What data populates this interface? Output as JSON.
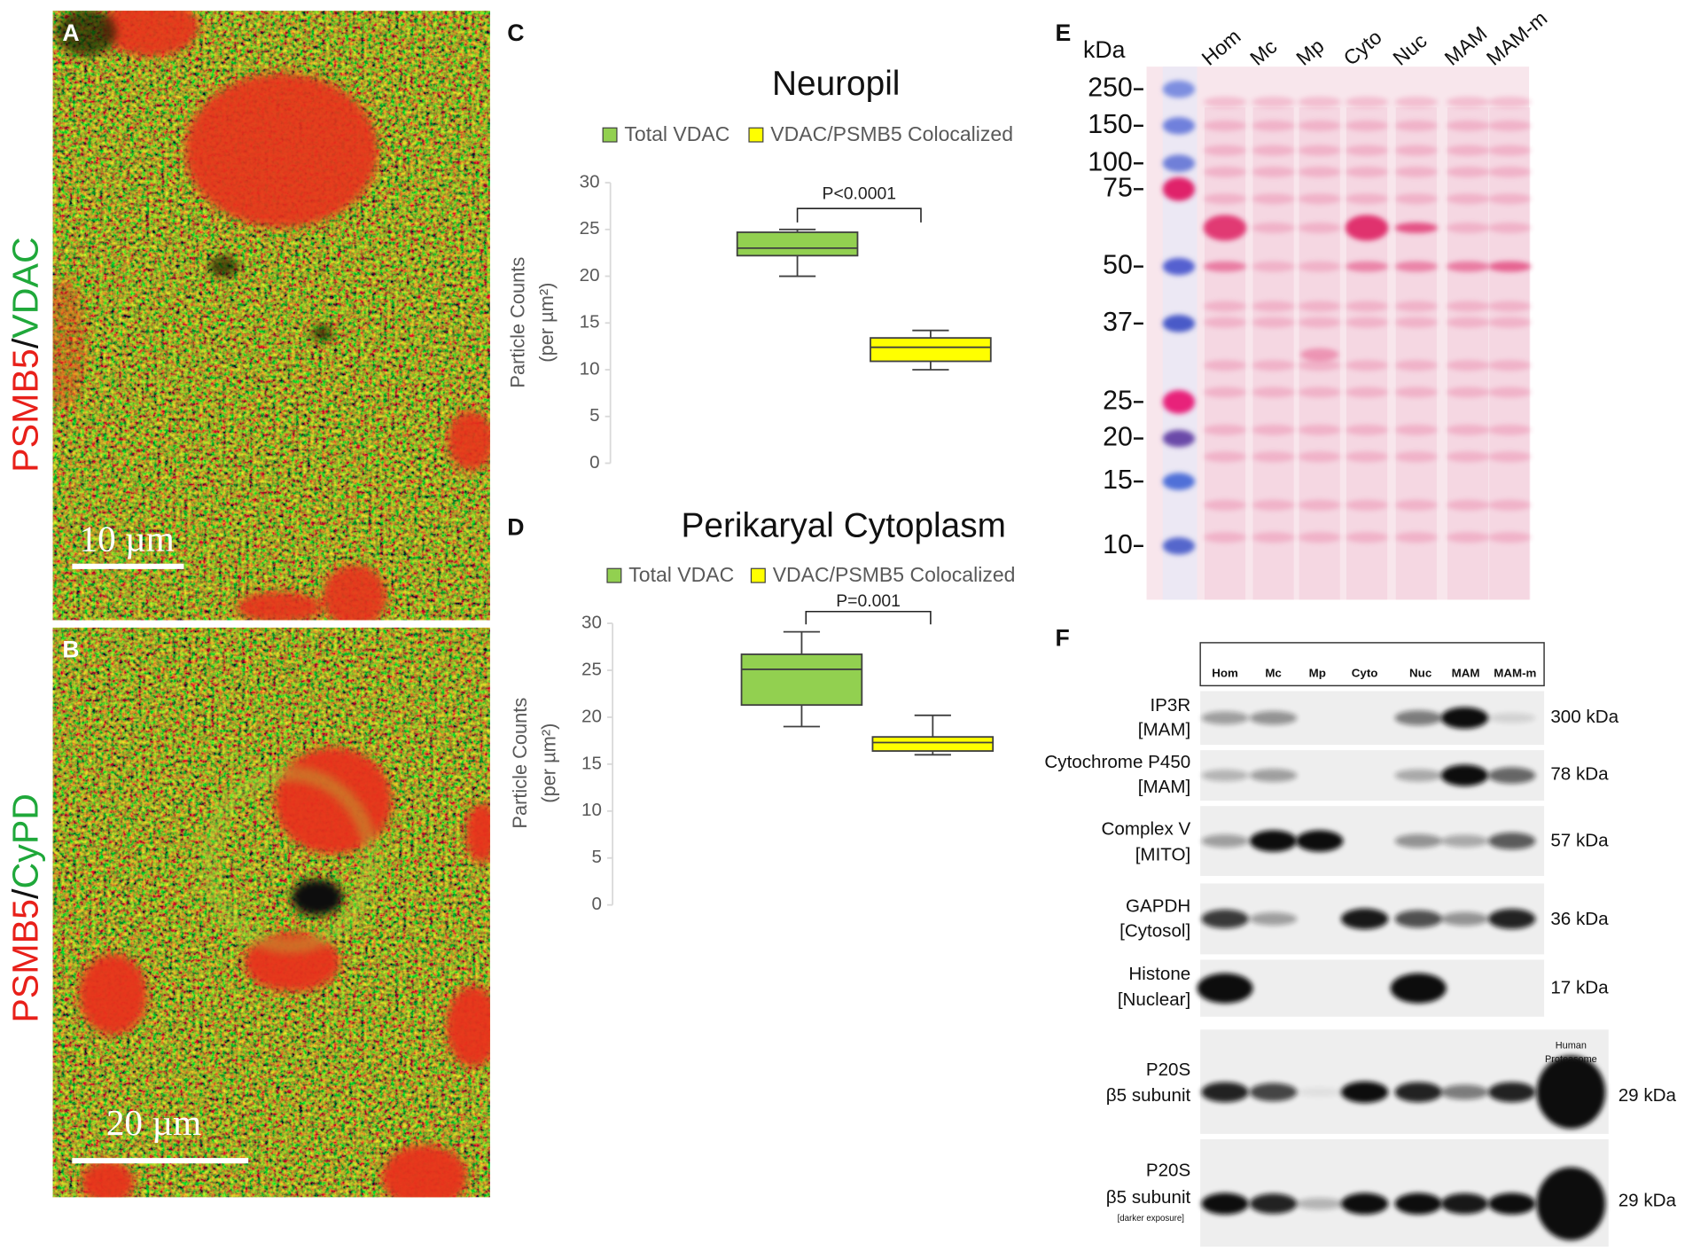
{
  "panels": {
    "A": {
      "letter": "A",
      "stain": [
        "PSMB5",
        "/",
        "VDAC"
      ],
      "scale_bar": "10 µm"
    },
    "B": {
      "letter": "B",
      "stain": [
        "PSMB5",
        "/",
        "CyPD"
      ],
      "scale_bar": "20 µm"
    },
    "C": {
      "letter": "C"
    },
    "D": {
      "letter": "D"
    },
    "E": {
      "letter": "E",
      "unit": "kDa",
      "markers": [
        "250",
        "150",
        "100",
        "75",
        "50",
        "37",
        "25",
        "20",
        "15",
        "10"
      ],
      "lanes": [
        "Hom",
        "Mc",
        "Mp",
        "Cyto",
        "Nuc",
        "MAM",
        "MAM-m"
      ]
    },
    "F": {
      "letter": "F",
      "lanes": [
        "Hom",
        "Mc",
        "Mp",
        "Cyto",
        "Nuc",
        "MAM",
        "MAM-m"
      ],
      "blots": [
        {
          "label": [
            "IP3R",
            "[MAM]"
          ],
          "size": "300 kDa"
        },
        {
          "label": [
            "Cytochrome P450",
            "[MAM]"
          ],
          "size": "78 kDa"
        },
        {
          "label": [
            "Complex V",
            "[MITO]"
          ],
          "size": "57 kDa"
        },
        {
          "label": [
            "GAPDH",
            "[Cytosol]"
          ],
          "size": "36 kDa"
        },
        {
          "label": [
            "Histone",
            "[Nuclear]"
          ],
          "size": "17 kDa"
        },
        {
          "label": [
            "P20S",
            "β5 subunit"
          ],
          "size": "29 kDa",
          "control": [
            "Human",
            "Proteasome"
          ]
        },
        {
          "label": [
            "P20S",
            "β5 subunit"
          ],
          "note": "[darker exposure]",
          "size": "29 kDa"
        }
      ]
    }
  },
  "chart_data": [
    {
      "type": "box",
      "title": "Neuropil",
      "y_label": [
        "Particle Counts",
        "(per µm²)"
      ],
      "ylim": [
        0,
        30
      ],
      "yticks": [
        0,
        5,
        10,
        15,
        20,
        25,
        30
      ],
      "annotation": "P<0.0001",
      "series": [
        {
          "name": "Total VDAC",
          "color": "#92d050",
          "whisker_low": 20,
          "q1": 22.2,
          "median": 23,
          "q3": 24.7,
          "whisker_high": 25
        },
        {
          "name": "VDAC/PSMB5 Colocalized",
          "color": "#ffff00",
          "whisker_low": 10,
          "q1": 10.9,
          "median": 12.4,
          "q3": 13.4,
          "whisker_high": 14.2
        }
      ]
    },
    {
      "type": "box",
      "title": "Perikaryal Cytoplasm",
      "y_label": [
        "Particle Counts",
        "(per µm²)"
      ],
      "ylim": [
        0,
        30
      ],
      "yticks": [
        0,
        5,
        10,
        15,
        20,
        25,
        30
      ],
      "annotation": "P=0.001",
      "series": [
        {
          "name": "Total VDAC",
          "color": "#92d050",
          "whisker_low": 19,
          "q1": 21.3,
          "median": 25.1,
          "q3": 26.7,
          "whisker_high": 29.1
        },
        {
          "name": "VDAC/PSMB5 Colocalized",
          "color": "#ffff00",
          "whisker_low": 16,
          "q1": 16.4,
          "median": 17.3,
          "q3": 17.9,
          "whisker_high": 20.2
        }
      ]
    }
  ]
}
